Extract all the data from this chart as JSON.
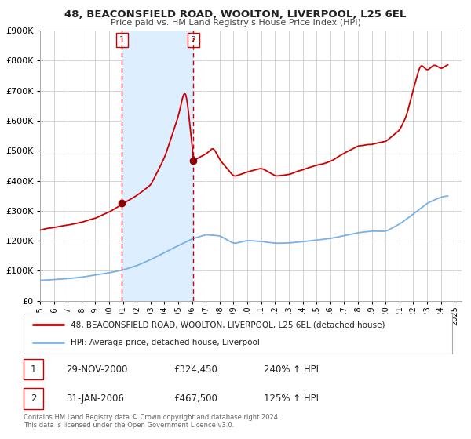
{
  "title": "48, BEACONSFIELD ROAD, WOOLTON, LIVERPOOL, L25 6EL",
  "subtitle": "Price paid vs. HM Land Registry's House Price Index (HPI)",
  "legend_line1": "48, BEACONSFIELD ROAD, WOOLTON, LIVERPOOL, L25 6EL (detached house)",
  "legend_line2": "HPI: Average price, detached house, Liverpool",
  "sale1_date": "29-NOV-2000",
  "sale1_price": "£324,450",
  "sale1_hpi": "240% ↑ HPI",
  "sale2_date": "31-JAN-2006",
  "sale2_price": "£467,500",
  "sale2_hpi": "125% ↑ HPI",
  "footnote": "Contains HM Land Registry data © Crown copyright and database right 2024.\nThis data is licensed under the Open Government Licence v3.0.",
  "hpi_color": "#7ab0e8",
  "property_color": "#cc0000",
  "marker_color": "#8b0000",
  "shade_color": "#ddeeff",
  "vline_color": "#cc0000",
  "background_color": "#ffffff",
  "grid_color": "#cccccc",
  "ylim_max": 900000,
  "xlim_start": 1995.0,
  "xlim_end": 2025.5,
  "sale1_x": 2000.917,
  "sale2_x": 2006.083,
  "sale1_price_val": 324450,
  "sale2_price_val": 467500,
  "prop_key_years": [
    1995.0,
    1996.0,
    1997.0,
    1998.0,
    1999.0,
    2000.0,
    2000.917,
    2002.0,
    2003.0,
    2004.0,
    2005.0,
    2005.4,
    2005.6,
    2006.083,
    2007.0,
    2007.5,
    2008.0,
    2009.0,
    2010.0,
    2011.0,
    2012.0,
    2013.0,
    2014.0,
    2015.0,
    2016.0,
    2017.0,
    2018.0,
    2019.0,
    2020.0,
    2021.0,
    2021.5,
    2022.0,
    2022.5,
    2023.0,
    2023.5,
    2024.0,
    2024.5
  ],
  "prop_key_vals": [
    235000,
    245000,
    255000,
    265000,
    278000,
    300000,
    324450,
    355000,
    390000,
    480000,
    620000,
    700000,
    680000,
    467500,
    490000,
    510000,
    470000,
    415000,
    430000,
    440000,
    415000,
    420000,
    435000,
    450000,
    460000,
    490000,
    515000,
    520000,
    530000,
    570000,
    620000,
    710000,
    790000,
    770000,
    790000,
    775000,
    790000
  ],
  "hpi_key_years": [
    1995.0,
    1996.0,
    1997.0,
    1998.0,
    1999.0,
    2000.0,
    2001.0,
    2002.0,
    2003.0,
    2004.0,
    2005.0,
    2006.0,
    2007.0,
    2008.0,
    2009.0,
    2010.0,
    2011.0,
    2012.0,
    2013.0,
    2014.0,
    2015.0,
    2016.0,
    2017.0,
    2018.0,
    2019.0,
    2020.0,
    2021.0,
    2022.0,
    2023.0,
    2024.0,
    2024.5
  ],
  "hpi_key_vals": [
    68000,
    70000,
    73000,
    78000,
    85000,
    93000,
    103000,
    118000,
    138000,
    162000,
    185000,
    208000,
    222000,
    218000,
    192000,
    202000,
    198000,
    192000,
    193000,
    198000,
    203000,
    208000,
    218000,
    228000,
    233000,
    233000,
    258000,
    292000,
    328000,
    348000,
    352000
  ]
}
